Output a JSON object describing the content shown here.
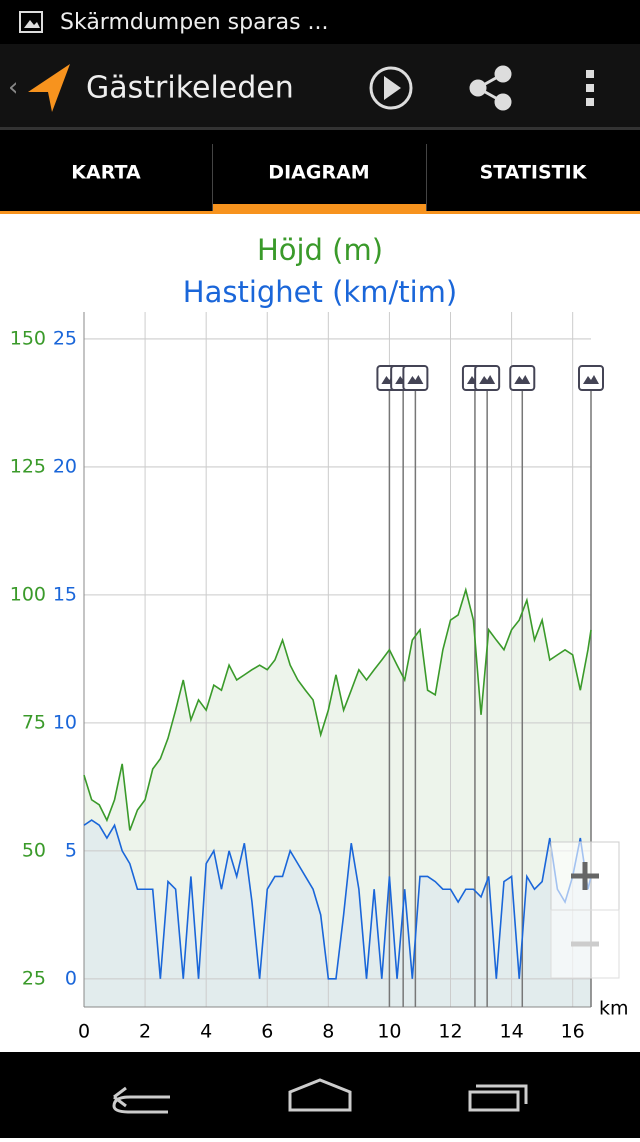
{
  "status_bar": {
    "notification": "Skärmdumpen sparas ..."
  },
  "app_bar": {
    "title": "Gästrikeleden"
  },
  "tabs": [
    "KARTA",
    "DIAGRAM",
    "STATISTIK"
  ],
  "chart_data": {
    "type": "line",
    "x_label": "km",
    "x": [
      0,
      0.25,
      0.5,
      0.75,
      1,
      1.25,
      1.5,
      1.75,
      2,
      2.25,
      2.5,
      2.75,
      3,
      3.25,
      3.5,
      3.75,
      4,
      4.25,
      4.5,
      4.75,
      5,
      5.25,
      5.5,
      5.75,
      6,
      6.25,
      6.5,
      6.75,
      7,
      7.25,
      7.5,
      7.75,
      8,
      8.25,
      8.5,
      8.75,
      9,
      9.25,
      9.5,
      9.75,
      10,
      10.25,
      10.5,
      10.75,
      11,
      11.25,
      11.5,
      11.75,
      12,
      12.25,
      12.5,
      12.75,
      13,
      13.25,
      13.5,
      13.75,
      14,
      14.25,
      14.5,
      14.75,
      15,
      15.25,
      15.5,
      15.75,
      16,
      16.25,
      16.5,
      16.6
    ],
    "series": [
      {
        "name": "Höjd (m)",
        "color": "#3a9a2a",
        "fill": "#e9f1e6",
        "axis": "y",
        "values": [
          64.8,
          60,
          59,
          56,
          60,
          67,
          54,
          58,
          60,
          66,
          68,
          72,
          77.5,
          83.4,
          75.6,
          79.5,
          77.5,
          82.4,
          81.4,
          86.3,
          83.4,
          84.4,
          85.4,
          86.3,
          85.4,
          87.3,
          91.2,
          86.3,
          83.4,
          81.4,
          79.5,
          72.7,
          77.5,
          84.4,
          77.5,
          81.4,
          85.4,
          83.4,
          85.4,
          87.3,
          89.3,
          86.3,
          83.4,
          91.2,
          93.2,
          81.4,
          80.5,
          89.3,
          95.1,
          96.1,
          101,
          95.1,
          76.6,
          93.2,
          91.2,
          89.3,
          93.2,
          95.1,
          99,
          91.2,
          95.1,
          87.3,
          88.3,
          89.3,
          88.3,
          81.4,
          89.3,
          93.2
        ]
      },
      {
        "name": "Hastighet (km/tim)",
        "color": "#1a66d9",
        "fill": "#dfeaee",
        "axis": "y2",
        "values": [
          6,
          6.2,
          6,
          5.5,
          6,
          5,
          4.5,
          3.5,
          3.5,
          3.5,
          0,
          3.8,
          3.5,
          0,
          4,
          0,
          4.5,
          5,
          3.5,
          5,
          4,
          5.3,
          3,
          0,
          3.5,
          4,
          4,
          5,
          4.5,
          4,
          3.5,
          2.5,
          0,
          0,
          2.5,
          5.3,
          3.5,
          0,
          3.5,
          0,
          4,
          0,
          3.5,
          0,
          4,
          4,
          3.8,
          3.5,
          3.5,
          3,
          3.5,
          3.5,
          3.2,
          4,
          0,
          3.8,
          4,
          0,
          4,
          3.5,
          3.8,
          5.5,
          3.5,
          3,
          4,
          5.5,
          3.5,
          4
        ]
      }
    ],
    "xlim": [
      0,
      16.6
    ],
    "xticks": [
      0,
      2,
      4,
      6,
      8,
      10,
      12,
      14,
      16
    ],
    "ylim": [
      19.5,
      155.3
    ],
    "yticks": [
      25,
      50,
      75,
      100,
      125,
      150
    ],
    "y2lim": [
      -1.1,
      26.05
    ],
    "y2ticks": [
      0,
      5,
      10,
      15,
      20,
      25
    ],
    "grid": true,
    "photo_markers": [
      10,
      10.45,
      10.85,
      12.8,
      13.2,
      14.35,
      16.6
    ]
  }
}
